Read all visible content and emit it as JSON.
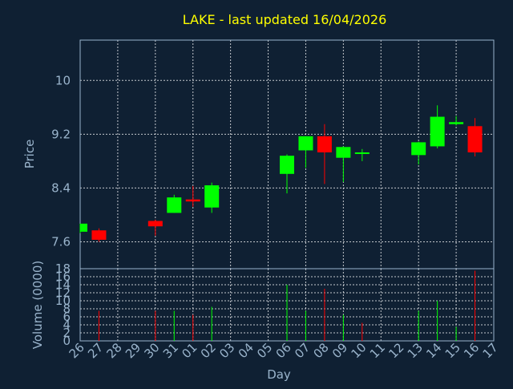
{
  "title": "LAKE - last updated 16/04/2026",
  "colors": {
    "background": "#0f2033",
    "up": "#00ff00",
    "down": "#ff0000",
    "title": "#ffff00",
    "text": "#9ab4cc",
    "grid": "#ffffff"
  },
  "chart_data": [
    {
      "type": "candlestick",
      "ylabel": "Price",
      "ylim": [
        7.2,
        10.6
      ],
      "yticks": [
        7.6,
        8.4,
        9.2,
        10
      ],
      "ytick_labels": [
        "7.6",
        "8.4",
        "9.2",
        "10"
      ],
      "grid": true,
      "x_categories": [
        "26",
        "27",
        "28",
        "29",
        "30",
        "31",
        "01",
        "02",
        "03",
        "04",
        "05",
        "06",
        "07",
        "08",
        "09",
        "10",
        "11",
        "12",
        "13",
        "14",
        "15",
        "16",
        "17"
      ],
      "candles": [
        {
          "x": "26",
          "open": 7.75,
          "high": 7.87,
          "low": 7.73,
          "close": 7.87
        },
        {
          "x": "27",
          "open": 7.77,
          "high": 7.8,
          "low": 7.6,
          "close": 7.63
        },
        {
          "x": "30",
          "open": 7.91,
          "high": 7.93,
          "low": 7.69,
          "close": 7.83
        },
        {
          "x": "31",
          "open": 8.03,
          "high": 8.3,
          "low": 8.03,
          "close": 8.26
        },
        {
          "x": "01",
          "open": 8.23,
          "high": 8.43,
          "low": 8.12,
          "close": 8.2
        },
        {
          "x": "02",
          "open": 8.11,
          "high": 8.48,
          "low": 8.03,
          "close": 8.44
        },
        {
          "x": "06",
          "open": 8.61,
          "high": 8.9,
          "low": 8.32,
          "close": 8.88
        },
        {
          "x": "07",
          "open": 8.96,
          "high": 9.17,
          "low": 8.7,
          "close": 9.17
        },
        {
          "x": "08",
          "open": 9.17,
          "high": 9.35,
          "low": 8.46,
          "close": 8.93
        },
        {
          "x": "09",
          "open": 8.85,
          "high": 9.02,
          "low": 8.49,
          "close": 9.01
        },
        {
          "x": "10",
          "open": 8.92,
          "high": 8.98,
          "low": 8.8,
          "close": 8.93
        },
        {
          "x": "13",
          "open": 8.89,
          "high": 9.09,
          "low": 8.75,
          "close": 9.08
        },
        {
          "x": "14",
          "open": 9.02,
          "high": 9.63,
          "low": 8.99,
          "close": 9.46
        },
        {
          "x": "15",
          "open": 9.35,
          "high": 9.47,
          "low": 9.33,
          "close": 9.38
        },
        {
          "x": "16",
          "open": 9.32,
          "high": 9.44,
          "low": 8.87,
          "close": 8.93
        }
      ]
    },
    {
      "type": "bar",
      "ylabel": "Volume (0000)",
      "ylim": [
        0,
        18
      ],
      "yticks": [
        0,
        2,
        4,
        6,
        8,
        10,
        12,
        14,
        16,
        18
      ],
      "ytick_labels": [
        "0",
        "2",
        "4",
        "6",
        "8",
        "10",
        "12",
        "14",
        "16",
        "18"
      ],
      "xlabel": "Day",
      "grid": true,
      "categories": [
        "26",
        "27",
        "28",
        "29",
        "30",
        "31",
        "01",
        "02",
        "03",
        "04",
        "05",
        "06",
        "07",
        "08",
        "09",
        "10",
        "11",
        "12",
        "13",
        "14",
        "15",
        "16",
        "17"
      ],
      "bars": [
        {
          "x": "27",
          "value": 7.5,
          "direction": "down"
        },
        {
          "x": "30",
          "value": 7.5,
          "direction": "down"
        },
        {
          "x": "31",
          "value": 7.5,
          "direction": "up"
        },
        {
          "x": "01",
          "value": 6.5,
          "direction": "down"
        },
        {
          "x": "02",
          "value": 8.5,
          "direction": "up"
        },
        {
          "x": "06",
          "value": 14.0,
          "direction": "up"
        },
        {
          "x": "07",
          "value": 7.5,
          "direction": "up"
        },
        {
          "x": "08",
          "value": 13.0,
          "direction": "down"
        },
        {
          "x": "09",
          "value": 6.5,
          "direction": "up"
        },
        {
          "x": "10",
          "value": 4.5,
          "direction": "down"
        },
        {
          "x": "13",
          "value": 7.5,
          "direction": "up"
        },
        {
          "x": "14",
          "value": 10.0,
          "direction": "up"
        },
        {
          "x": "15",
          "value": 3.5,
          "direction": "up"
        },
        {
          "x": "16",
          "value": 17.5,
          "direction": "down"
        }
      ]
    }
  ]
}
